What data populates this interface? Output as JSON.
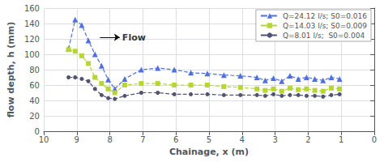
{
  "chart_data": {
    "type": "line",
    "xlabel": "Chainage, x (m)",
    "ylabel": "flow depth, h (mm)",
    "xlim": [
      10,
      0
    ],
    "ylim": [
      0,
      160
    ],
    "xticks": [
      10,
      9,
      8,
      7,
      6,
      5,
      4,
      3,
      2,
      1,
      0
    ],
    "yticks": [
      0,
      20,
      40,
      60,
      80,
      100,
      120,
      140,
      160
    ],
    "grid": true,
    "legend": "upper right",
    "x": [
      9.25,
      9.05,
      8.85,
      8.65,
      8.45,
      8.25,
      8.05,
      7.85,
      7.55,
      7.05,
      6.55,
      6.05,
      5.55,
      5.05,
      4.55,
      4.05,
      3.55,
      3.3,
      3.05,
      2.8,
      2.55,
      2.3,
      2.05,
      1.8,
      1.55,
      1.3,
      1.05
    ],
    "series": [
      {
        "name": "Q=24.12 l/s; S0=0.016",
        "marker": "triangle",
        "line_style": "dashed",
        "values": [
          107,
          145,
          138,
          118,
          100,
          85,
          67,
          55,
          68,
          80,
          82,
          80,
          76,
          75,
          73,
          72,
          70,
          66,
          69,
          65,
          72,
          68,
          70,
          68,
          66,
          70,
          68
        ]
      },
      {
        "name": "Q=14.03 l/s; S0=0.009",
        "marker": "square",
        "line_style": "dashed",
        "values": [
          106,
          104,
          98,
          88,
          70,
          62,
          55,
          50,
          60,
          62,
          62,
          60,
          60,
          60,
          58,
          57,
          55,
          53,
          55,
          52,
          56,
          54,
          55,
          53,
          52,
          56,
          55
        ]
      },
      {
        "name": "Q=8.01 l/s;  S0=0.004",
        "marker": "circle",
        "line_style": "dashed",
        "values": [
          70,
          70,
          68,
          65,
          55,
          47,
          43,
          42,
          46,
          50,
          50,
          48,
          48,
          48,
          47,
          47,
          47,
          46,
          48,
          46,
          47,
          47,
          46,
          46,
          45,
          47,
          48
        ]
      }
    ],
    "annotations": [
      {
        "text": "Flow",
        "x": 7.65,
        "y": 122,
        "arrow": {
          "from": 8.3,
          "to": 7.7,
          "y": 122
        }
      }
    ]
  }
}
